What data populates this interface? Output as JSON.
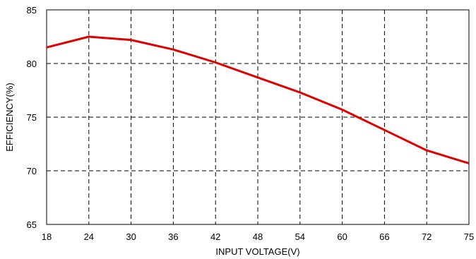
{
  "chart_data": {
    "type": "line",
    "xlabel": "INPUT VOLTAGE(V)",
    "ylabel": "EFFICIENCY(%)",
    "x_ticks": [
      "18",
      "24",
      "30",
      "36",
      "42",
      "48",
      "54",
      "60",
      "66",
      "72",
      "75"
    ],
    "y_ticks": [
      "85",
      "80",
      "75",
      "70",
      "65"
    ],
    "ylim": [
      65,
      85
    ],
    "grid": true,
    "grid_style": "dashed",
    "line_color": "#e00000",
    "series": [
      {
        "values": [
          {
            "x": "18",
            "y": 81.5
          },
          {
            "x": "24",
            "y": 82.5
          },
          {
            "x": "30",
            "y": 82.2
          },
          {
            "x": "36",
            "y": 81.3
          },
          {
            "x": "42",
            "y": 80.1
          },
          {
            "x": "48",
            "y": 78.7
          },
          {
            "x": "54",
            "y": 77.3
          },
          {
            "x": "60",
            "y": 75.7
          },
          {
            "x": "66",
            "y": 73.8
          },
          {
            "x": "72",
            "y": 71.9
          },
          {
            "x": "75",
            "y": 70.7
          }
        ]
      }
    ]
  }
}
